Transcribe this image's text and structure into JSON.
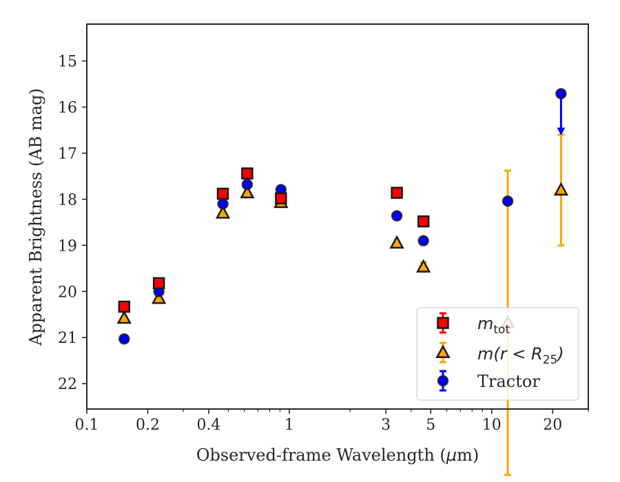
{
  "chart_data": {
    "type": "scatter",
    "xlabel": "Observed-frame Wavelength (",
    "xlabel_unit": "μ",
    "xlabel_unit_rest": "m)",
    "ylabel": "Apparent Brightness (AB mag)",
    "xscale": "log",
    "xlim": [
      0.1,
      30
    ],
    "ylim": [
      22.55,
      14.2
    ],
    "y_inverted": true,
    "grid": false,
    "legend_position": "bottom-right",
    "x_ticks": [
      {
        "value": 0.1,
        "label": "0.1"
      },
      {
        "value": 0.2,
        "label": "0.2"
      },
      {
        "value": 0.4,
        "label": "0.4"
      },
      {
        "value": 1,
        "label": "1"
      },
      {
        "value": 3,
        "label": "3"
      },
      {
        "value": 5,
        "label": "5"
      },
      {
        "value": 10,
        "label": "10"
      },
      {
        "value": 20,
        "label": "20"
      }
    ],
    "y_ticks": [
      {
        "value": 15,
        "label": "15"
      },
      {
        "value": 16,
        "label": "16"
      },
      {
        "value": 17,
        "label": "17"
      },
      {
        "value": 18,
        "label": "18"
      },
      {
        "value": 19,
        "label": "19"
      },
      {
        "value": 20,
        "label": "20"
      },
      {
        "value": 21,
        "label": "21"
      },
      {
        "value": 22,
        "label": "22"
      }
    ],
    "series": [
      {
        "key": "tot",
        "legend_math": "m",
        "legend_sub": "tot",
        "marker": "square",
        "color": "#ff0000",
        "errcolor": "#ff0000",
        "x": [
          0.153,
          0.227,
          0.47,
          0.62,
          0.91,
          3.4,
          4.6
        ],
        "y": [
          20.33,
          19.82,
          17.88,
          17.44,
          17.98,
          17.86,
          18.48
        ],
        "err": [
          0.04,
          0.04,
          0.03,
          0.03,
          0.05,
          0.03,
          0.05
        ]
      },
      {
        "key": "r25",
        "legend_math": "m(r < R",
        "legend_sub": "25",
        "legend_close": ")",
        "marker": "triangle",
        "color": "#ffa500",
        "errcolor": "#ffa500",
        "x": [
          0.153,
          0.227,
          0.47,
          0.62,
          0.91,
          3.4,
          4.6,
          12.0,
          22.0
        ],
        "y": [
          20.58,
          20.15,
          18.3,
          17.86,
          18.07,
          18.95,
          19.47,
          20.68,
          17.8
        ],
        "err": [
          0.04,
          0.04,
          0.03,
          0.03,
          0.04,
          0.04,
          0.1,
          3.3,
          1.2
        ]
      },
      {
        "key": "tractor",
        "legend_text": "Tractor",
        "marker": "circle",
        "color": "#0000ff",
        "errcolor": "#0000ff",
        "x": [
          0.153,
          0.227,
          0.47,
          0.62,
          0.91,
          3.4,
          4.6,
          12.0,
          22.0
        ],
        "y": [
          21.03,
          20.0,
          18.1,
          17.68,
          17.79,
          18.36,
          18.9,
          18.04,
          15.71
        ],
        "err": [
          0.05,
          0.06,
          0.07,
          0.06,
          0.06,
          0.04,
          0.05,
          0.03,
          0.0
        ],
        "upper_limit_index": 8,
        "upper_limit_to": 16.58
      }
    ]
  },
  "colors": {
    "axis": "#262626",
    "edge": "#1a1a1a"
  }
}
